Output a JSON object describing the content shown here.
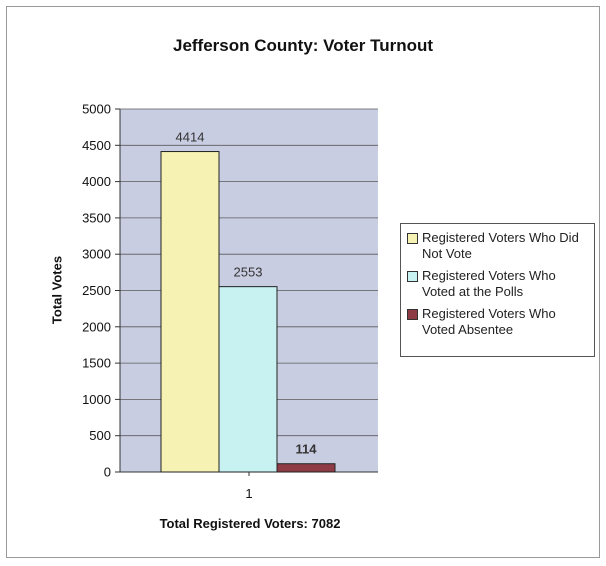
{
  "chart_data": {
    "type": "bar",
    "title": "Jefferson County:  Voter Turnout",
    "xlabel": "Total Registered Voters:  7082",
    "ylabel": "Total Votes",
    "categories": [
      "1"
    ],
    "ylim": [
      0,
      5000
    ],
    "yticks": [
      "0",
      "500",
      "1000",
      "1500",
      "2000",
      "2500",
      "3000",
      "3500",
      "4000",
      "4500",
      "5000"
    ],
    "grid": true,
    "legend_position": "right",
    "series": [
      {
        "name": "Registered Voters Who Did Not Vote",
        "values": [
          4414
        ],
        "color": "#f5f2b4",
        "label": "4414"
      },
      {
        "name": "Registered Voters Who Voted at the Polls",
        "values": [
          2553
        ],
        "color": "#c8f2f2",
        "label": "2553"
      },
      {
        "name": "Registered Voters Who Voted Absentee",
        "values": [
          114
        ],
        "color": "#8e3b46",
        "label": "114"
      }
    ],
    "plot_background": "#c9cde2"
  }
}
